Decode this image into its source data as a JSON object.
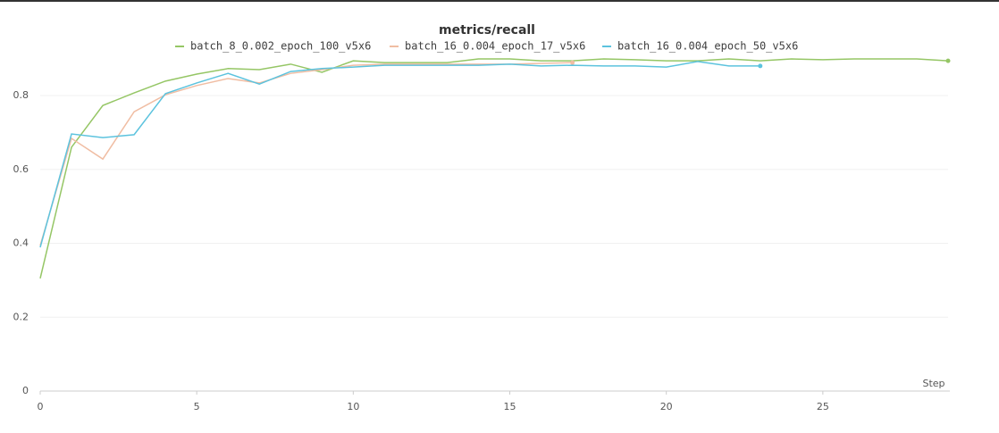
{
  "chart_data": {
    "type": "line",
    "title": "metrics/recall",
    "x_label": "Step",
    "xlim": [
      0,
      29
    ],
    "ylim": [
      0,
      0.92
    ],
    "xticks": [
      0,
      5,
      10,
      15,
      20,
      25
    ],
    "yticks": [
      0,
      0.2,
      0.4,
      0.6,
      0.8
    ],
    "grid": true,
    "series": [
      {
        "name": "batch_8_0.002_epoch_100_v5x6",
        "color": "#95c665",
        "x": [
          0,
          1,
          2,
          3,
          4,
          5,
          6,
          7,
          8,
          9,
          10,
          11,
          12,
          13,
          14,
          15,
          16,
          17,
          18,
          19,
          20,
          21,
          22,
          23,
          24,
          25,
          26,
          27,
          28,
          29
        ],
        "values": [
          0.305,
          0.66,
          0.773,
          0.807,
          0.839,
          0.858,
          0.873,
          0.87,
          0.885,
          0.863,
          0.894,
          0.889,
          0.889,
          0.889,
          0.899,
          0.899,
          0.894,
          0.894,
          0.899,
          0.897,
          0.894,
          0.894,
          0.899,
          0.894,
          0.899,
          0.897,
          0.899,
          0.899,
          0.899,
          0.894
        ]
      },
      {
        "name": "batch_16_0.004_epoch_17_v5x6",
        "color": "#f0bda3",
        "x": [
          0,
          1,
          2,
          3,
          4,
          5,
          6,
          7,
          8,
          9,
          10,
          11,
          12,
          13,
          14,
          15,
          16,
          17
        ],
        "values": [
          0.394,
          0.684,
          0.628,
          0.756,
          0.802,
          0.827,
          0.846,
          0.834,
          0.86,
          0.87,
          0.882,
          0.885,
          0.885,
          0.885,
          0.885,
          0.885,
          0.887,
          0.889
        ]
      },
      {
        "name": "batch_16_0.004_epoch_50_v5x6",
        "color": "#5cc3de",
        "x": [
          0,
          1,
          2,
          3,
          4,
          5,
          6,
          7,
          8,
          9,
          10,
          11,
          12,
          13,
          14,
          15,
          16,
          17,
          18,
          19,
          20,
          21,
          22,
          23
        ],
        "values": [
          0.389,
          0.696,
          0.686,
          0.694,
          0.805,
          0.834,
          0.86,
          0.831,
          0.865,
          0.873,
          0.877,
          0.882,
          0.882,
          0.882,
          0.882,
          0.885,
          0.88,
          0.882,
          0.88,
          0.88,
          0.877,
          0.892,
          0.88,
          0.88
        ]
      }
    ]
  }
}
